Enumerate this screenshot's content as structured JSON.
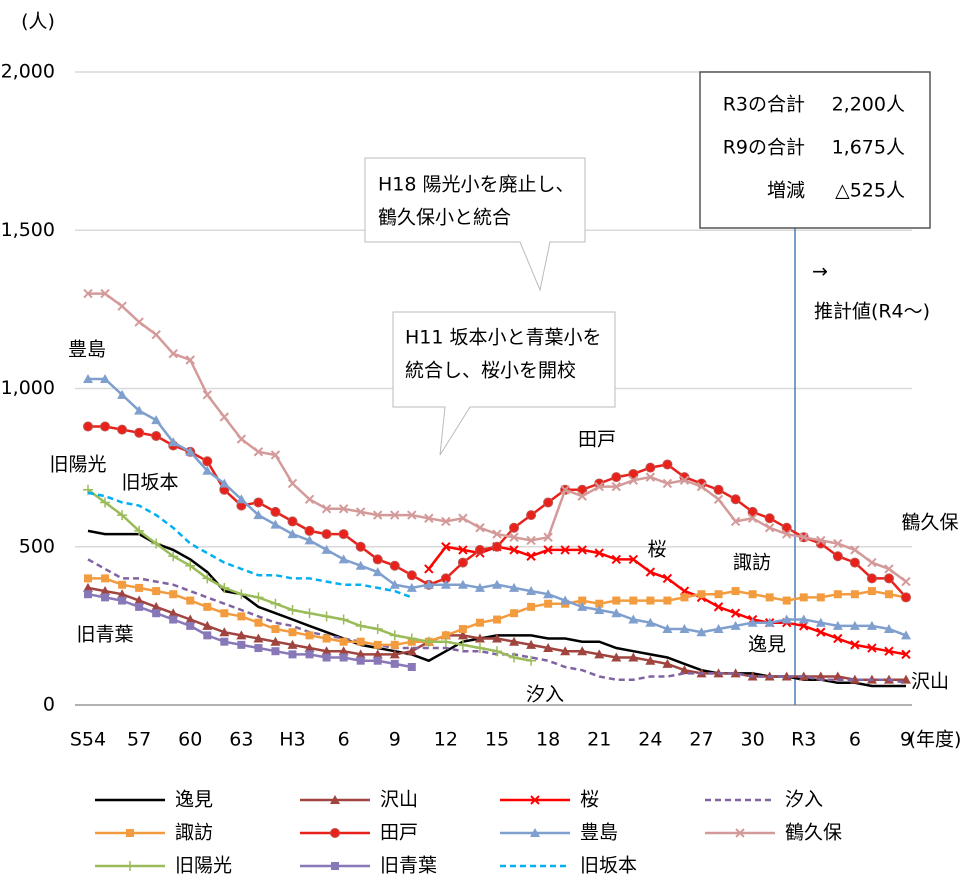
{
  "chart_data": {
    "type": "line",
    "y_unit_label": "(人)",
    "x_unit_label": "(年度)",
    "categories": [
      "S54",
      null,
      null,
      "57",
      null,
      null,
      "60",
      null,
      null,
      "63",
      null,
      null,
      "H3",
      null,
      null,
      "6",
      null,
      null,
      "9",
      null,
      null,
      "12",
      null,
      null,
      "15",
      null,
      null,
      "18",
      null,
      null,
      "21",
      null,
      null,
      "24",
      null,
      null,
      "27",
      null,
      null,
      "30",
      null,
      null,
      "R3",
      null,
      null,
      "6",
      null,
      null,
      "9"
    ],
    "ylim": [
      0,
      2000
    ],
    "yticks": [
      0,
      500,
      {
        "value": 1000,
        "label": "1,000"
      },
      {
        "value": 1500,
        "label": "1,500"
      },
      {
        "value": 2000,
        "label": "2,000"
      }
    ],
    "grid": true,
    "series": [
      {
        "name": "逸見",
        "color": "#000000",
        "marker": "none",
        "dash": false,
        "values": [
          550,
          540,
          540,
          540,
          510,
          490,
          460,
          420,
          360,
          350,
          310,
          290,
          270,
          250,
          230,
          210,
          190,
          180,
          170,
          160,
          140,
          170,
          200,
          210,
          220,
          220,
          220,
          210,
          210,
          200,
          200,
          180,
          170,
          160,
          150,
          130,
          110,
          100,
          100,
          100,
          90,
          90,
          80,
          80,
          70,
          70,
          60,
          60,
          60
        ]
      },
      {
        "name": "沢山",
        "color": "#a0443f",
        "marker": "triangle",
        "dash": false,
        "values": [
          370,
          360,
          350,
          330,
          310,
          290,
          270,
          250,
          230,
          220,
          210,
          200,
          190,
          180,
          170,
          170,
          160,
          160,
          160,
          170,
          200,
          220,
          220,
          210,
          210,
          200,
          190,
          180,
          170,
          170,
          160,
          150,
          150,
          140,
          130,
          110,
          100,
          100,
          100,
          90,
          90,
          90,
          90,
          90,
          90,
          80,
          80,
          80,
          80
        ]
      },
      {
        "name": "桜",
        "color": "#ff0000",
        "marker": "x",
        "dash": false,
        "values": [
          null,
          null,
          null,
          null,
          null,
          null,
          null,
          null,
          null,
          null,
          null,
          null,
          null,
          null,
          null,
          null,
          null,
          null,
          null,
          null,
          430,
          500,
          490,
          480,
          500,
          490,
          470,
          490,
          490,
          490,
          480,
          460,
          460,
          420,
          400,
          360,
          340,
          310,
          290,
          270,
          260,
          260,
          250,
          230,
          210,
          190,
          180,
          170,
          160
        ]
      },
      {
        "name": "汐入",
        "color": "#8064a2",
        "marker": "none",
        "dash": true,
        "values": [
          460,
          430,
          400,
          400,
          390,
          380,
          360,
          340,
          320,
          300,
          280,
          260,
          250,
          230,
          220,
          210,
          200,
          190,
          180,
          180,
          180,
          180,
          170,
          170,
          160,
          160,
          150,
          140,
          120,
          110,
          90,
          80,
          80,
          90,
          90,
          100,
          100,
          100,
          100,
          90,
          90,
          90,
          90,
          80,
          80,
          80,
          80,
          80,
          70
        ]
      },
      {
        "name": "諏訪",
        "color": "#f39c3f",
        "marker": "square",
        "dash": false,
        "values": [
          400,
          400,
          380,
          370,
          360,
          350,
          330,
          310,
          290,
          280,
          260,
          240,
          230,
          220,
          210,
          200,
          200,
          190,
          190,
          200,
          200,
          220,
          240,
          260,
          270,
          290,
          310,
          320,
          320,
          330,
          320,
          330,
          330,
          330,
          330,
          340,
          350,
          350,
          360,
          350,
          340,
          330,
          340,
          340,
          350,
          350,
          360,
          350,
          340
        ]
      },
      {
        "name": "田戸",
        "color": "#e8221b",
        "marker": "circle",
        "dash": false,
        "values": [
          880,
          880,
          870,
          860,
          850,
          820,
          800,
          770,
          680,
          630,
          640,
          610,
          580,
          550,
          540,
          540,
          500,
          460,
          440,
          410,
          380,
          400,
          450,
          490,
          500,
          560,
          600,
          640,
          680,
          680,
          700,
          720,
          730,
          750,
          760,
          720,
          700,
          680,
          650,
          610,
          590,
          560,
          530,
          510,
          470,
          450,
          400,
          400,
          340
        ]
      },
      {
        "name": "豊島",
        "color": "#7f9fcf",
        "marker": "triangle",
        "dash": false,
        "values": [
          1030,
          1030,
          980,
          930,
          900,
          830,
          800,
          740,
          700,
          650,
          600,
          570,
          540,
          520,
          490,
          460,
          440,
          420,
          380,
          370,
          380,
          380,
          380,
          370,
          380,
          370,
          360,
          350,
          330,
          310,
          300,
          290,
          270,
          260,
          240,
          240,
          230,
          240,
          250,
          260,
          260,
          270,
          270,
          260,
          250,
          250,
          250,
          240,
          220
        ]
      },
      {
        "name": "鶴久保",
        "color": "#d49a9a",
        "marker": "x",
        "dash": false,
        "values": [
          1300,
          1300,
          1260,
          1210,
          1170,
          1110,
          1090,
          980,
          910,
          840,
          800,
          790,
          700,
          650,
          620,
          620,
          610,
          600,
          600,
          600,
          590,
          580,
          590,
          560,
          540,
          530,
          520,
          530,
          680,
          660,
          690,
          690,
          710,
          720,
          700,
          710,
          690,
          650,
          580,
          590,
          560,
          540,
          530,
          520,
          510,
          490,
          450,
          430,
          390
        ]
      },
      {
        "name": "旧陽光",
        "color": "#9bbb59",
        "marker": "plus",
        "dash": false,
        "values": [
          680,
          640,
          600,
          550,
          510,
          470,
          440,
          400,
          370,
          350,
          340,
          320,
          300,
          290,
          280,
          270,
          250,
          240,
          220,
          210,
          200,
          200,
          190,
          180,
          170,
          150,
          140,
          null,
          null,
          null,
          null,
          null,
          null,
          null,
          null,
          null,
          null,
          null,
          null,
          null,
          null,
          null,
          null,
          null,
          null,
          null,
          null,
          null,
          null
        ]
      },
      {
        "name": "旧青葉",
        "color": "#8878b8",
        "marker": "square",
        "dash": false,
        "values": [
          350,
          340,
          330,
          310,
          290,
          270,
          250,
          220,
          200,
          190,
          180,
          170,
          160,
          160,
          150,
          150,
          140,
          140,
          130,
          120,
          null,
          null,
          null,
          null,
          null,
          null,
          null,
          null,
          null,
          null,
          null,
          null,
          null,
          null,
          null,
          null,
          null,
          null,
          null,
          null,
          null,
          null,
          null,
          null,
          null,
          null,
          null,
          null,
          null
        ]
      },
      {
        "name": "旧坂本",
        "color": "#00b0f0",
        "marker": "none",
        "dash": true,
        "values": [
          670,
          660,
          640,
          630,
          600,
          560,
          510,
          480,
          450,
          430,
          410,
          410,
          400,
          400,
          390,
          380,
          380,
          370,
          360,
          340,
          null,
          null,
          null,
          null,
          null,
          null,
          null,
          null,
          null,
          null,
          null,
          null,
          null,
          null,
          null,
          null,
          null,
          null,
          null,
          null,
          null,
          null,
          null,
          null,
          null,
          null,
          null,
          null,
          null
        ]
      }
    ],
    "series_labels": [
      "豊島",
      "旧陽光",
      "旧坂本",
      "旧青葉",
      "田戸",
      "桜",
      "諏訪",
      "逸見",
      "鶴久保",
      "沢山",
      "汐入"
    ],
    "callouts": [
      [
        "H18 陽光小を廃止し、",
        "鶴久保小と統合"
      ],
      [
        "H11 坂本小と青葉小を",
        "統合し、桜小を開校"
      ]
    ],
    "summary_box": [
      {
        "label": "R3の合計",
        "value": "2,200人"
      },
      {
        "label": "R9の合計",
        "value": "1,675人"
      },
      {
        "label": "増減",
        "value": "△525人"
      }
    ],
    "forecast_arrow": "→",
    "forecast_note": "推計値(R4〜)"
  }
}
